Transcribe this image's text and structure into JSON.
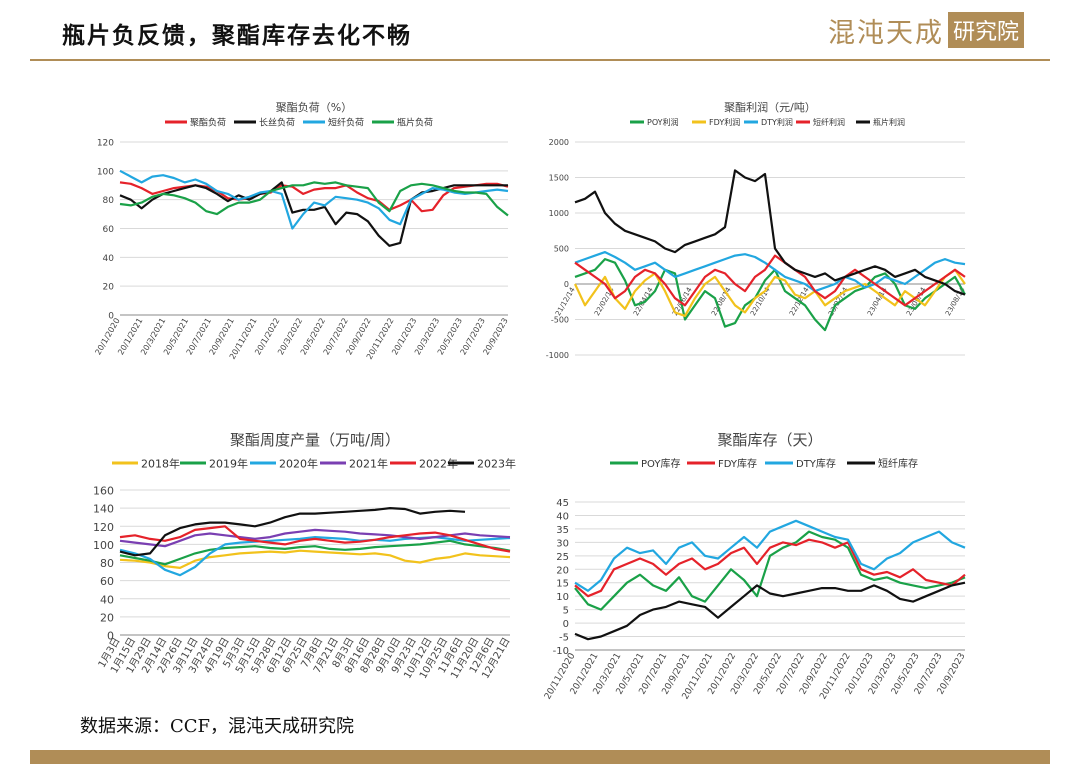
{
  "header": {
    "title": "瓶片负反馈，聚酯库存去化不畅",
    "logo_text": "混沌天成",
    "logo_sub": "研究院"
  },
  "footer": {
    "source": "数据来源：CCF，混沌天成研究院"
  },
  "colors": {
    "brand": "#b08d57"
  },
  "chart_data": [
    {
      "id": "load",
      "type": "line",
      "title": "聚酯负荷（%）",
      "ylim": [
        0,
        120
      ],
      "yticks": [
        "0",
        "20",
        "40",
        "60",
        "80",
        "100",
        "120"
      ],
      "xticks": [
        "20/1/2020",
        "20/1/2021",
        "20/3/2021",
        "20/5/2021",
        "20/7/2021",
        "20/9/2021",
        "20/11/2021",
        "20/1/2022",
        "20/3/2022",
        "20/5/2022",
        "20/7/2022",
        "20/9/2022",
        "20/11/2022",
        "20/1/2023",
        "20/3/2023",
        "20/5/2023",
        "20/7/2023",
        "20/9/2023"
      ],
      "series": [
        {
          "name": "聚酯负荷",
          "color": "#e5222a",
          "values": [
            92,
            91,
            88,
            84,
            86,
            88,
            89,
            90,
            89,
            86,
            81,
            80,
            81,
            84,
            85,
            90,
            89,
            84,
            87,
            88,
            88,
            90,
            85,
            81,
            79,
            73,
            76,
            80,
            72,
            73,
            83,
            88,
            89,
            90,
            91,
            91,
            89
          ]
        },
        {
          "name": "长丝负荷",
          "color": "#111111",
          "values": [
            83,
            80,
            74,
            80,
            84,
            86,
            88,
            90,
            88,
            84,
            79,
            83,
            80,
            84,
            86,
            92,
            71,
            73,
            73,
            75,
            63,
            71,
            70,
            65,
            55,
            48,
            50,
            80,
            85,
            86,
            88,
            90,
            90,
            90,
            90,
            90,
            90
          ]
        },
        {
          "name": "短纤负荷",
          "color": "#22a7e0",
          "values": [
            100,
            96,
            92,
            96,
            97,
            95,
            92,
            94,
            91,
            86,
            84,
            80,
            82,
            85,
            86,
            84,
            60,
            70,
            78,
            76,
            82,
            81,
            80,
            78,
            74,
            66,
            63,
            80,
            84,
            88,
            87,
            85,
            84,
            85,
            86,
            87,
            86
          ]
        },
        {
          "name": "瓶片负荷",
          "color": "#1aa148",
          "values": [
            77,
            76,
            78,
            82,
            84,
            83,
            81,
            78,
            72,
            70,
            75,
            78,
            78,
            80,
            86,
            88,
            90,
            90,
            92,
            91,
            92,
            90,
            89,
            88,
            78,
            72,
            86,
            90,
            91,
            90,
            88,
            86,
            85,
            85,
            84,
            75,
            69
          ]
        }
      ]
    },
    {
      "id": "profit",
      "type": "line",
      "title": "聚酯利润（元/吨）",
      "ylim": [
        -1000,
        2000
      ],
      "yticks": [
        "-1000",
        "-500",
        "0",
        "500",
        "1000",
        "1500",
        "2000"
      ],
      "xticks": [
        "21/12/14",
        "22/02/14",
        "22/04/14",
        "22/06/14",
        "22/08/14",
        "22/10/14",
        "22/12/14",
        "23/02/14",
        "23/04/14",
        "23/06/14",
        "23/08/14"
      ],
      "series": [
        {
          "name": "POY利润",
          "color": "#1aa148",
          "values": [
            100,
            150,
            200,
            350,
            300,
            50,
            -300,
            -250,
            -100,
            200,
            150,
            -500,
            -300,
            -100,
            -200,
            -600,
            -550,
            -300,
            -200,
            50,
            200,
            -100,
            -200,
            -300,
            -500,
            -650,
            -300,
            -200,
            -100,
            -50,
            100,
            150,
            0,
            -300,
            -350,
            -200,
            -100,
            0,
            100,
            -150
          ]
        },
        {
          "name": "FDY利润",
          "color": "#f2c21c",
          "values": [
            0,
            -300,
            -100,
            100,
            -200,
            -350,
            -100,
            50,
            150,
            -100,
            -400,
            -450,
            -200,
            0,
            100,
            -100,
            -300,
            -400,
            -200,
            -100,
            100,
            50,
            -150,
            -200,
            -100,
            -300,
            -200,
            -100,
            -50,
            0,
            -100,
            -200,
            -300,
            -100,
            -200,
            -300,
            -100,
            100,
            200,
            0
          ]
        },
        {
          "name": "DTY利润",
          "color": "#22a7e0",
          "values": [
            300,
            350,
            400,
            450,
            380,
            300,
            200,
            250,
            300,
            200,
            100,
            150,
            200,
            250,
            300,
            350,
            400,
            420,
            380,
            300,
            200,
            100,
            50,
            0,
            -100,
            -50,
            0,
            100,
            50,
            -50,
            0,
            100,
            50,
            0,
            100,
            200,
            300,
            350,
            300,
            280
          ]
        },
        {
          "name": "短纤利润",
          "color": "#e5222a",
          "values": [
            300,
            200,
            100,
            0,
            -200,
            -100,
            100,
            200,
            150,
            0,
            -200,
            -300,
            -100,
            100,
            200,
            150,
            0,
            -100,
            100,
            200,
            400,
            300,
            200,
            100,
            -100,
            -200,
            -100,
            100,
            200,
            100,
            0,
            -100,
            -200,
            -300,
            -200,
            -100,
            0,
            100,
            200,
            100
          ]
        },
        {
          "name": "瓶片利润",
          "color": "#111111",
          "values": [
            1150,
            1200,
            1300,
            1000,
            850,
            750,
            700,
            650,
            600,
            500,
            450,
            550,
            600,
            650,
            700,
            800,
            1600,
            1500,
            1450,
            1550,
            500,
            300,
            200,
            150,
            100,
            150,
            50,
            100,
            150,
            200,
            250,
            200,
            100,
            150,
            200,
            100,
            50,
            0,
            -100,
            -150
          ]
        }
      ]
    },
    {
      "id": "output",
      "type": "line",
      "title": "聚酯周度产量（万吨/周）",
      "ylim": [
        0,
        160
      ],
      "yticks": [
        "0",
        "20",
        "40",
        "60",
        "80",
        "100",
        "120",
        "140",
        "160"
      ],
      "xticks": [
        "1月3日",
        "1月15日",
        "1月29日",
        "2月14日",
        "2月26日",
        "3月11日",
        "3月24日",
        "4月19日",
        "5月3日",
        "5月15日",
        "5月28日",
        "6月12日",
        "6月25日",
        "7月8日",
        "7月21日",
        "8月3日",
        "8月16日",
        "8月28日",
        "9月10日",
        "9月23日",
        "10月12日",
        "10月25日",
        "11月6日",
        "11月20日",
        "12月6日",
        "12月21日"
      ],
      "series": [
        {
          "name": "2018年",
          "color": "#f2c21c",
          "values": [
            83,
            82,
            80,
            76,
            74,
            82,
            86,
            88,
            90,
            91,
            92,
            91,
            93,
            92,
            91,
            90,
            89,
            90,
            88,
            82,
            80,
            84,
            86,
            90,
            88,
            87,
            86
          ]
        },
        {
          "name": "2019年",
          "color": "#1aa148",
          "values": [
            88,
            85,
            82,
            78,
            84,
            90,
            94,
            96,
            97,
            98,
            96,
            95,
            97,
            98,
            95,
            94,
            95,
            97,
            98,
            99,
            100,
            102,
            104,
            100,
            98,
            96,
            93
          ]
        },
        {
          "name": "2020年",
          "color": "#22a7e0",
          "values": [
            94,
            90,
            84,
            72,
            66,
            75,
            90,
            100,
            102,
            103,
            104,
            105,
            106,
            108,
            107,
            106,
            104,
            105,
            104,
            106,
            107,
            108,
            106,
            104,
            105,
            106,
            107
          ]
        },
        {
          "name": "2021年",
          "color": "#7a3fb2",
          "values": [
            104,
            102,
            100,
            98,
            104,
            110,
            112,
            110,
            108,
            106,
            108,
            112,
            114,
            116,
            115,
            114,
            112,
            111,
            110,
            108,
            106,
            108,
            110,
            112,
            110,
            109,
            108
          ]
        },
        {
          "name": "2022年",
          "color": "#e5222a",
          "values": [
            108,
            110,
            106,
            104,
            108,
            116,
            118,
            120,
            106,
            104,
            102,
            100,
            104,
            106,
            104,
            102,
            103,
            105,
            108,
            110,
            112,
            113,
            110,
            105,
            100,
            95,
            92
          ]
        },
        {
          "name": "2023年",
          "color": "#111111",
          "values": [
            92,
            88,
            90,
            110,
            118,
            122,
            124,
            124,
            122,
            120,
            124,
            130,
            134,
            134,
            135,
            136,
            137,
            138,
            140,
            139,
            134,
            136,
            137,
            136
          ]
        }
      ]
    },
    {
      "id": "inventory",
      "type": "line",
      "title": "聚酯库存（天）",
      "ylim": [
        -10,
        45
      ],
      "yticks": [
        "-10",
        "-5",
        "0",
        "5",
        "10",
        "15",
        "20",
        "25",
        "30",
        "35",
        "40",
        "45"
      ],
      "xticks": [
        "20/11/2020",
        "20/1/2021",
        "20/3/2021",
        "20/5/2021",
        "20/7/2021",
        "20/9/2021",
        "20/11/2021",
        "20/1/2022",
        "20/3/2022",
        "20/5/2022",
        "20/7/2022",
        "20/9/2022",
        "20/11/2022",
        "20/1/2023",
        "20/3/2023",
        "20/5/2023",
        "20/7/2023",
        "20/9/2023"
      ],
      "series": [
        {
          "name": "POY库存",
          "color": "#1aa148",
          "values": [
            13,
            7,
            5,
            10,
            15,
            18,
            14,
            12,
            17,
            10,
            8,
            14,
            20,
            16,
            10,
            25,
            28,
            30,
            34,
            32,
            31,
            28,
            18,
            16,
            17,
            15,
            14,
            13,
            14,
            15,
            17
          ]
        },
        {
          "name": "FDY库存",
          "color": "#e5222a",
          "values": [
            14,
            10,
            12,
            20,
            22,
            24,
            22,
            18,
            22,
            24,
            20,
            22,
            26,
            28,
            22,
            28,
            30,
            29,
            31,
            30,
            28,
            30,
            20,
            18,
            19,
            17,
            20,
            16,
            15,
            14,
            18
          ]
        },
        {
          "name": "DTY库存",
          "color": "#22a7e0",
          "values": [
            15,
            12,
            16,
            24,
            28,
            26,
            27,
            22,
            28,
            30,
            25,
            24,
            28,
            32,
            28,
            34,
            36,
            38,
            36,
            34,
            32,
            31,
            22,
            20,
            24,
            26,
            30,
            32,
            34,
            30,
            28
          ]
        },
        {
          "name": "短纤库存",
          "color": "#111111",
          "values": [
            -4,
            -6,
            -5,
            -3,
            -1,
            3,
            5,
            6,
            8,
            7,
            6,
            2,
            6,
            10,
            14,
            11,
            10,
            11,
            12,
            13,
            13,
            12,
            12,
            14,
            12,
            9,
            8,
            10,
            12,
            14,
            15
          ]
        }
      ]
    }
  ]
}
